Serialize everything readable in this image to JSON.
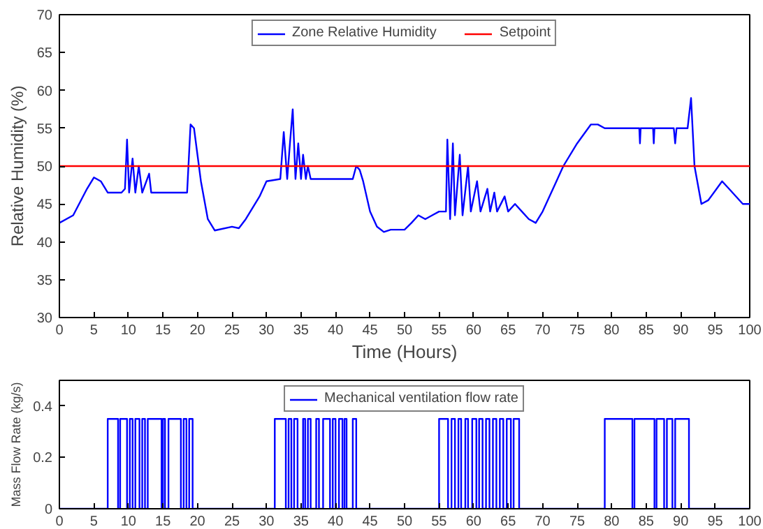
{
  "chart_data": [
    {
      "type": "line",
      "xlabel": "Time (Hours)",
      "ylabel": "Relative Humidity (%)",
      "xlim": [
        0,
        100
      ],
      "ylim": [
        30,
        70
      ],
      "xticks": [
        0,
        5,
        10,
        15,
        20,
        25,
        30,
        35,
        40,
        45,
        50,
        55,
        60,
        65,
        70,
        75,
        80,
        85,
        90,
        95,
        100
      ],
      "yticks": [
        30,
        35,
        40,
        45,
        50,
        55,
        60,
        65,
        70
      ],
      "grid": false,
      "legend": "top",
      "marker": "none",
      "line_style": "solid",
      "series": [
        {
          "name": "Zone Relative Humidity",
          "color": "#0000ff",
          "x": [
            0,
            2,
            4,
            5,
            6,
            7,
            9,
            9.5,
            9.8,
            10.1,
            10.6,
            11,
            11.5,
            12,
            13,
            13.3,
            18.5,
            19,
            19.5,
            20.5,
            21.5,
            22.5,
            25,
            26,
            27,
            29,
            30,
            32,
            32.5,
            33,
            33.4,
            33.8,
            34.2,
            34.6,
            35,
            35.3,
            35.7,
            36,
            36.4,
            42.5,
            43,
            43.5,
            44,
            45,
            46,
            47,
            48,
            50,
            51,
            52,
            53,
            54,
            55,
            56,
            56.2,
            56.6,
            57,
            57.3,
            58,
            58.4,
            59.2,
            59.6,
            60.5,
            61,
            62,
            62.4,
            63,
            63.4,
            64.5,
            65,
            66,
            67,
            68,
            69,
            70,
            72,
            73,
            75,
            77,
            78,
            79,
            84,
            84.1,
            84.2,
            86,
            86.1,
            86.2,
            89,
            89.2,
            89.4,
            91,
            91.5,
            92,
            93,
            94,
            96,
            97,
            99,
            100
          ],
          "values": [
            42.5,
            43.5,
            47,
            48.5,
            48,
            46.5,
            46.5,
            47,
            53.5,
            46.5,
            51,
            46.5,
            50,
            46.5,
            49,
            46.5,
            46.5,
            55.5,
            55,
            48,
            43,
            41.5,
            42,
            41.8,
            43,
            46,
            48,
            48.3,
            54.5,
            48.3,
            53,
            57.5,
            48.3,
            53,
            48.3,
            51.5,
            48.3,
            50,
            48.3,
            48.3,
            50,
            49.5,
            48,
            44,
            42,
            41.3,
            41.6,
            41.6,
            42.5,
            43.5,
            43,
            43.5,
            44,
            44,
            53.5,
            43,
            53,
            43.5,
            51.5,
            43.5,
            50,
            44,
            48,
            44,
            47,
            44,
            46.5,
            44,
            46,
            44,
            45,
            44,
            43,
            42.5,
            44,
            48,
            50,
            53,
            55.5,
            55.5,
            55,
            55,
            53,
            55,
            55,
            53,
            55,
            55,
            53,
            55,
            55,
            59,
            50,
            45,
            45.5,
            48,
            47,
            45,
            45
          ]
        },
        {
          "name": "Setpoint",
          "color": "#ff0000",
          "x": [
            0,
            100
          ],
          "values": [
            50,
            50
          ]
        }
      ]
    },
    {
      "type": "line",
      "ylabel": "Mass Flow Rate (kg/s)",
      "xlim": [
        0,
        100
      ],
      "ylim": [
        0,
        0.5
      ],
      "xticks": [
        0,
        5,
        10,
        15,
        20,
        25,
        30,
        35,
        40,
        45,
        50,
        55,
        60,
        65,
        70,
        75,
        80,
        85,
        90,
        95,
        100
      ],
      "yticks": [
        0,
        0.2,
        0.4
      ],
      "grid": false,
      "legend": "top",
      "marker": "none",
      "line_style": "solid",
      "series": [
        {
          "name": "Mechanical ventilation flow rate",
          "color": "#0000ff",
          "x": [
            0,
            7,
            7,
            8.5,
            8.5,
            8.8,
            8.8,
            9.8,
            9.8,
            10.2,
            10.2,
            10.6,
            10.6,
            11,
            11,
            11.6,
            11.6,
            12,
            12,
            12.4,
            12.4,
            12.8,
            12.8,
            14.8,
            14.8,
            15,
            15,
            15.3,
            15.3,
            15.8,
            15.8,
            17.6,
            17.6,
            18,
            18,
            18.4,
            18.4,
            18.8,
            18.8,
            19.3,
            19.3,
            31.2,
            31.2,
            32.8,
            32.8,
            33.2,
            33.2,
            33.6,
            33.6,
            34,
            34,
            34.5,
            34.5,
            35.3,
            35.3,
            35.6,
            35.6,
            36,
            36,
            36.4,
            36.4,
            37.2,
            37.2,
            37.6,
            37.6,
            38.2,
            38.2,
            39.2,
            39.2,
            39.6,
            39.6,
            40,
            40,
            40.5,
            40.5,
            41,
            41,
            41.3,
            41.3,
            41.6,
            41.6,
            42.5,
            42.5,
            43,
            43,
            55,
            55,
            56.3,
            56.3,
            56.8,
            56.8,
            57.3,
            57.3,
            57.8,
            57.8,
            58.2,
            58.2,
            58.8,
            58.8,
            59.2,
            59.2,
            59.8,
            59.8,
            60.4,
            60.4,
            60.8,
            60.8,
            61.3,
            61.3,
            61.8,
            61.8,
            62.3,
            62.3,
            62.8,
            62.8,
            63.3,
            63.3,
            63.8,
            63.8,
            64.3,
            64.3,
            64.8,
            64.8,
            65.4,
            65.4,
            65.8,
            65.8,
            66.6,
            66.6,
            79,
            79,
            83,
            83,
            83.3,
            83.3,
            86.2,
            86.2,
            86.5,
            86.5,
            87.6,
            87.6,
            88,
            88,
            88.8,
            88.8,
            89.2,
            89.2,
            91.2,
            91.2,
            100
          ],
          "values": [
            0,
            0,
            0.35,
            0.35,
            0,
            0,
            0.35,
            0.35,
            0,
            0,
            0.35,
            0.35,
            0,
            0,
            0.35,
            0.35,
            0,
            0,
            0.35,
            0.35,
            0,
            0,
            0.35,
            0.35,
            0,
            0,
            0.35,
            0.35,
            0,
            0,
            0.35,
            0.35,
            0,
            0,
            0.35,
            0.35,
            0,
            0,
            0.35,
            0.35,
            0,
            0,
            0.35,
            0.35,
            0,
            0,
            0.35,
            0.35,
            0,
            0,
            0.35,
            0.35,
            0,
            0,
            0.35,
            0.35,
            0,
            0,
            0.35,
            0.35,
            0,
            0,
            0.35,
            0.35,
            0,
            0,
            0.35,
            0.35,
            0,
            0,
            0.35,
            0.35,
            0,
            0,
            0.35,
            0.35,
            0,
            0,
            0.35,
            0.35,
            0,
            0,
            0.35,
            0.35,
            0,
            0,
            0.35,
            0.35,
            0,
            0,
            0.35,
            0.35,
            0,
            0,
            0.35,
            0.35,
            0,
            0,
            0.35,
            0.35,
            0,
            0,
            0.35,
            0.35,
            0,
            0,
            0.35,
            0.35,
            0,
            0,
            0.35,
            0.35,
            0,
            0,
            0.35,
            0.35,
            0,
            0,
            0.35,
            0.35,
            0,
            0,
            0.35,
            0.35,
            0,
            0,
            0.35,
            0.35,
            0,
            0,
            0.35,
            0.35,
            0,
            0,
            0.35,
            0.35,
            0,
            0,
            0.35,
            0.35,
            0,
            0,
            0.35,
            0.35,
            0,
            0,
            0.35,
            0.35,
            0,
            0
          ]
        }
      ]
    }
  ]
}
